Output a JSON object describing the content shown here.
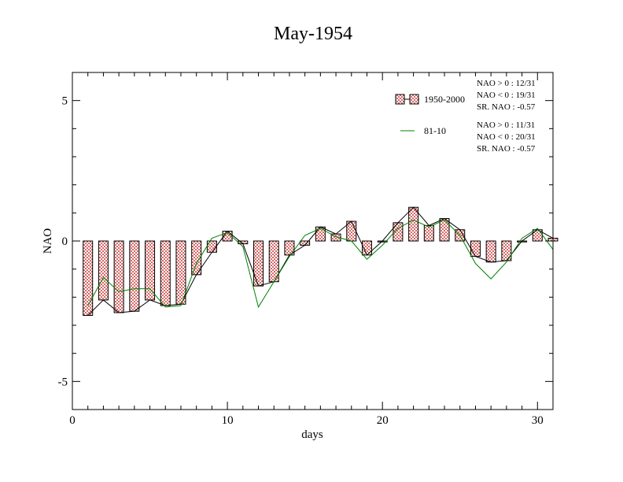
{
  "chart_data": {
    "type": "bar",
    "title": "May-1954",
    "xlabel": "days",
    "ylabel": "NAO",
    "xlim": [
      0,
      31
    ],
    "ylim": [
      -6,
      6
    ],
    "x_ticks": [
      0,
      10,
      20,
      30
    ],
    "y_ticks": [
      -5,
      0,
      5
    ],
    "x_tick_labels": [
      "0",
      "10",
      "20",
      "30"
    ],
    "y_tick_labels": [
      "-5",
      "0",
      "5"
    ],
    "grid": false,
    "legend_position": "top-right",
    "x": [
      1,
      2,
      3,
      4,
      5,
      6,
      7,
      8,
      9,
      10,
      11,
      12,
      13,
      14,
      15,
      16,
      17,
      18,
      19,
      20,
      21,
      22,
      23,
      24,
      25,
      26,
      27,
      28,
      29,
      30,
      31
    ],
    "series": [
      {
        "name": "1950-2000",
        "style": "bars-with-line",
        "color": "#d66a6a",
        "line_color": "#000000",
        "values": [
          -2.65,
          -2.1,
          -2.55,
          -2.5,
          -2.1,
          -2.3,
          -2.25,
          -1.2,
          -0.4,
          0.35,
          -0.1,
          -1.6,
          -1.45,
          -0.5,
          -0.15,
          0.5,
          0.25,
          0.7,
          -0.5,
          0.0,
          0.65,
          1.2,
          0.55,
          0.8,
          0.4,
          -0.55,
          -0.75,
          -0.7,
          0.0,
          0.4,
          0.1
        ]
      },
      {
        "name": "81-10",
        "style": "line",
        "color": "#008000",
        "values": [
          -2.3,
          -1.3,
          -1.8,
          -1.7,
          -1.7,
          -2.35,
          -2.3,
          -0.8,
          0.1,
          0.3,
          -0.2,
          -2.35,
          -1.45,
          -0.55,
          0.2,
          0.45,
          0.15,
          0.0,
          -0.65,
          -0.15,
          0.45,
          0.75,
          0.5,
          0.75,
          0.2,
          -0.8,
          -1.35,
          -0.75,
          0.1,
          0.45,
          -0.3
        ]
      }
    ],
    "stats": [
      [
        "NAO > 0 : 12/31",
        "NAO < 0 : 19/31",
        "SR. NAO : -0.57"
      ],
      [
        "NAO > 0 : 11/31",
        "NAO < 0 : 20/31",
        "SR. NAO : -0.57"
      ]
    ]
  }
}
